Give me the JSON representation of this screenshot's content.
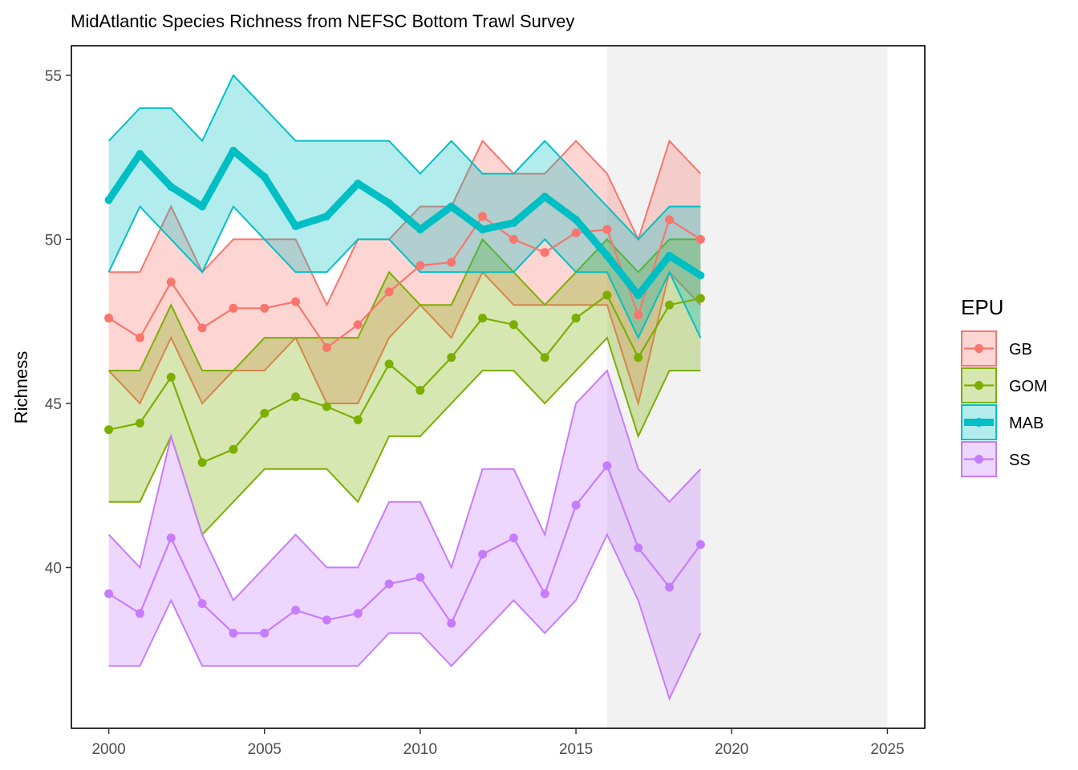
{
  "chart_data": {
    "type": "line",
    "title": "MidAtlantic Species Richness from NEFSC Bottom Trawl Survey",
    "xlabel": "",
    "ylabel": "Richness",
    "xlim": [
      1998.8,
      2026.2
    ],
    "ylim": [
      35.1,
      55.9
    ],
    "x_ticks": [
      2000,
      2005,
      2010,
      2015,
      2020,
      2025
    ],
    "y_ticks": [
      40,
      45,
      50,
      55
    ],
    "grid": false,
    "shaded_region": {
      "x_start": 2016,
      "x_end": 2025,
      "color": "#f2f2f2"
    },
    "legend": {
      "title": "EPU",
      "placement": "right",
      "entries": [
        "GB",
        "GOM",
        "MAB",
        "SS"
      ]
    },
    "x": [
      2000,
      2001,
      2002,
      2003,
      2004,
      2005,
      2006,
      2007,
      2008,
      2009,
      2010,
      2011,
      2012,
      2013,
      2014,
      2015,
      2016,
      2017,
      2018,
      2019
    ],
    "series": [
      {
        "name": "GB",
        "color": "#F8766D",
        "fill": "#F8766D",
        "highlight": false,
        "values": [
          47.6,
          47.0,
          48.7,
          47.3,
          47.9,
          47.9,
          48.1,
          46.7,
          47.4,
          48.4,
          49.2,
          49.3,
          50.7,
          50.0,
          49.6,
          50.2,
          50.3,
          47.7,
          50.6,
          50.0
        ],
        "upper": [
          49,
          49,
          51,
          49,
          50,
          50,
          50,
          48,
          50,
          50,
          51,
          51,
          53,
          52,
          52,
          53,
          52,
          50,
          53,
          52
        ],
        "lower": [
          46,
          45,
          47,
          45,
          46,
          46,
          47,
          45,
          45,
          47,
          48,
          47,
          49,
          48,
          48,
          48,
          48,
          45,
          49,
          48
        ]
      },
      {
        "name": "GOM",
        "color": "#7CAE00",
        "fill": "#7CAE00",
        "highlight": false,
        "values": [
          44.2,
          44.4,
          45.8,
          43.2,
          43.6,
          44.7,
          45.2,
          44.9,
          44.5,
          46.2,
          45.4,
          46.4,
          47.6,
          47.4,
          46.4,
          47.6,
          48.3,
          46.4,
          48.0,
          48.2
        ],
        "upper": [
          46,
          46,
          48,
          46,
          46,
          47,
          47,
          47,
          47,
          49,
          48,
          48,
          50,
          49,
          48,
          49,
          50,
          49,
          50,
          50
        ],
        "lower": [
          42,
          42,
          44,
          41,
          42,
          43,
          43,
          43,
          42,
          44,
          44,
          45,
          46,
          46,
          45,
          46,
          47,
          44,
          46,
          46
        ]
      },
      {
        "name": "MAB",
        "color": "#00BFC4",
        "fill": "#00BFC4",
        "highlight": true,
        "values": [
          51.2,
          52.6,
          51.6,
          51.0,
          52.7,
          51.9,
          50.4,
          50.7,
          51.7,
          51.1,
          50.3,
          51.0,
          50.3,
          50.5,
          51.3,
          50.6,
          49.5,
          48.3,
          49.5,
          48.9
        ],
        "upper": [
          53,
          54,
          54,
          53,
          55,
          54,
          53,
          53,
          53,
          53,
          52,
          53,
          52,
          52,
          53,
          52,
          51,
          50,
          51,
          51
        ],
        "lower": [
          49,
          51,
          50,
          49,
          51,
          50,
          49,
          49,
          50,
          50,
          49,
          49,
          49,
          49,
          50,
          49,
          49,
          47,
          49,
          47
        ]
      },
      {
        "name": "SS",
        "color": "#C77CFF",
        "fill": "#C77CFF",
        "highlight": false,
        "values": [
          39.2,
          38.6,
          40.9,
          38.9,
          38.0,
          38.0,
          38.7,
          38.4,
          38.6,
          39.5,
          39.7,
          38.3,
          40.4,
          40.9,
          39.2,
          41.9,
          43.1,
          40.6,
          39.4,
          40.7
        ],
        "upper": [
          41,
          40,
          44,
          41,
          39,
          40,
          41,
          40,
          40,
          42,
          42,
          40,
          43,
          43,
          41,
          45,
          46,
          43,
          42,
          43
        ],
        "lower": [
          37,
          37,
          39,
          37,
          37,
          37,
          37,
          37,
          37,
          38,
          38,
          37,
          38,
          39,
          38,
          39,
          41,
          39,
          36,
          38
        ]
      }
    ]
  }
}
